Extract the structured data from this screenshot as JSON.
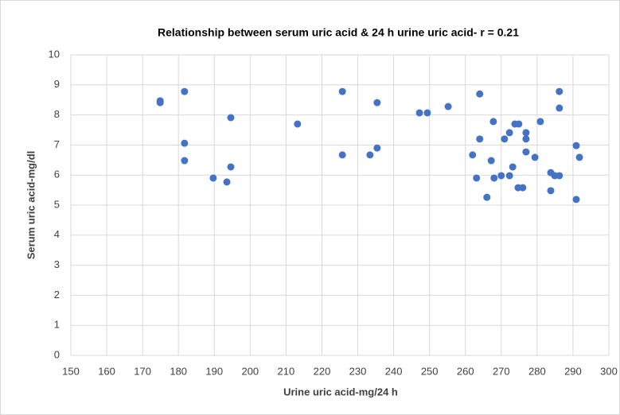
{
  "chart_data": {
    "type": "scatter",
    "title": "Relationship between serum uric acid & 24 h urine uric acid- r = 0.21",
    "x_label": "Urine uric acid-mg/24 h",
    "y_label": "Serum uric acid-mg/dl",
    "color": "#4472c4",
    "grid": true,
    "xlim": [
      150,
      300
    ],
    "xticks": [
      150,
      160,
      170,
      180,
      190,
      200,
      210,
      220,
      230,
      240,
      250,
      260,
      270,
      280,
      290,
      300
    ],
    "ylim": [
      0,
      10
    ],
    "yticks": [
      0,
      1,
      2,
      3,
      4,
      5,
      6,
      7,
      8,
      9,
      10
    ],
    "x": [
      174.9,
      174.9,
      181.7,
      181.7,
      181.7,
      189.7,
      193.5,
      194.6,
      194.6,
      213.2,
      225.7,
      225.7,
      233.4,
      235.4,
      235.4,
      247.2,
      249.4,
      255.2,
      264.0,
      264.0,
      262.0,
      263.1,
      266.0,
      267.2,
      267.8,
      268.0,
      270.0,
      270.9,
      272.3,
      272.3,
      273.2,
      273.8,
      274.9,
      274.7,
      276.0,
      276.9,
      276.9,
      276.9,
      279.4,
      280.9,
      283.8,
      283.8,
      284.9,
      286.2,
      286.2,
      286.2,
      290.9,
      290.9,
      291.8
    ],
    "values": [
      8.47,
      8.41,
      8.78,
      7.06,
      6.48,
      5.9,
      5.77,
      7.91,
      6.27,
      7.7,
      8.78,
      6.67,
      6.67,
      6.9,
      8.41,
      8.07,
      8.07,
      8.28,
      8.7,
      7.2,
      6.67,
      5.9,
      5.26,
      6.48,
      7.78,
      5.9,
      5.98,
      7.2,
      5.98,
      7.41,
      6.27,
      7.7,
      7.7,
      5.58,
      5.58,
      7.41,
      7.2,
      6.77,
      6.59,
      7.78,
      6.08,
      5.48,
      5.98,
      5.98,
      8.78,
      8.23,
      6.98,
      5.19,
      6.59
    ]
  }
}
